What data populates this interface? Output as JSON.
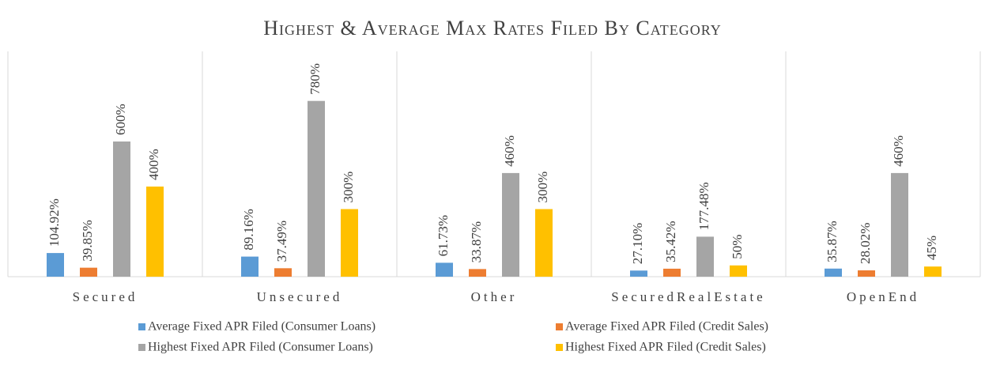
{
  "chart_data": {
    "type": "bar",
    "title": "Highest & Average Max Rates Filed By Category",
    "categories": [
      "Secured",
      "Unsecured",
      "Other",
      "SecuredRealEstate",
      "OpenEnd"
    ],
    "ylim": [
      0,
      1000
    ],
    "series": [
      {
        "name": "Average Fixed APR Filed (Consumer Loans)",
        "color": "#5b9bd5",
        "values": [
          104.92,
          89.16,
          61.73,
          27.1,
          35.87
        ],
        "value_labels": [
          "104.92%",
          "89.16%",
          "61.73%",
          "27.10%",
          "35.87%"
        ]
      },
      {
        "name": "Average Fixed APR Filed (Credit Sales)",
        "color": "#ed7d31",
        "values": [
          39.85,
          37.49,
          33.87,
          35.42,
          28.02
        ],
        "value_labels": [
          "39.85%",
          "37.49%",
          "33.87%",
          "35.42%",
          "28.02%"
        ]
      },
      {
        "name": "Highest Fixed APR Filed (Consumer Loans)",
        "color": "#a5a5a5",
        "values": [
          600,
          780,
          460,
          177.48,
          460
        ],
        "value_labels": [
          "600%",
          "780%",
          "460%",
          "177.48%",
          "460%"
        ]
      },
      {
        "name": "Highest Fixed APR Filed (Credit Sales)",
        "color": "#ffc000",
        "values": [
          400,
          300,
          300,
          50,
          45
        ],
        "value_labels": [
          "400%",
          "300%",
          "300%",
          "50%",
          "45%"
        ]
      }
    ]
  }
}
